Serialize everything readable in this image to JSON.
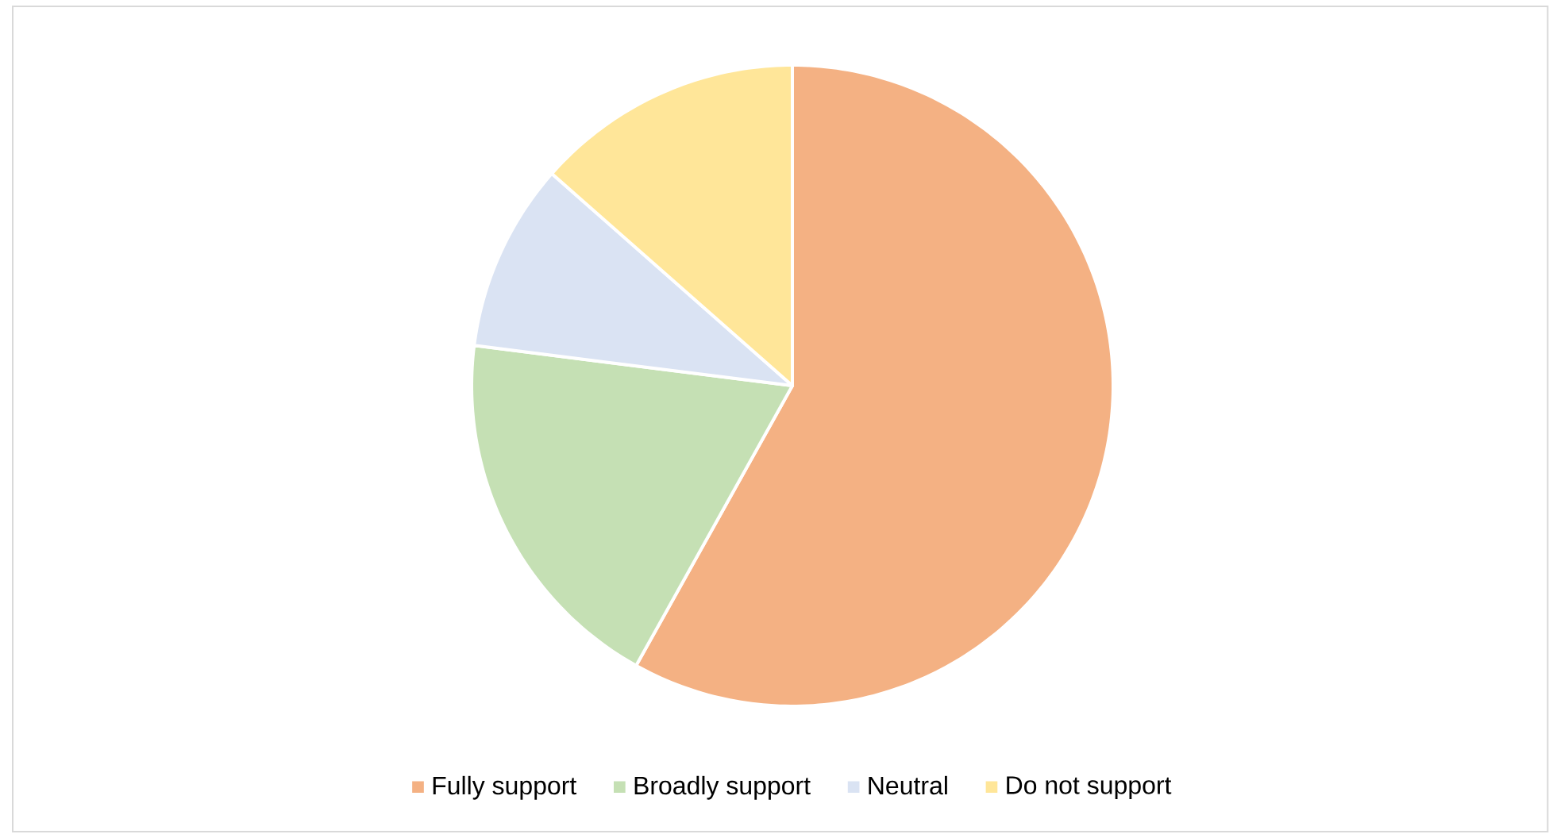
{
  "chart_data": {
    "type": "pie",
    "categories": [
      "Fully support",
      "Broadly support",
      "Neutral",
      "Do not support"
    ],
    "values": [
      58.1,
      18.9,
      9.5,
      13.5
    ],
    "colors": [
      "#f4b183",
      "#c5e0b4",
      "#dae3f3",
      "#ffe699"
    ],
    "legend": "bottom"
  }
}
